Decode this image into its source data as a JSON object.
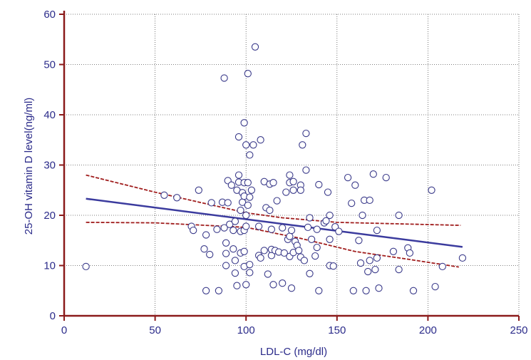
{
  "chart_data": {
    "type": "scatter",
    "title": "",
    "xlabel": "LDL-C (mg/dl)",
    "ylabel": "25-OH vitamin D  level(ng/ml)",
    "xlim": [
      0,
      250
    ],
    "ylim": [
      0,
      60
    ],
    "xticks": [
      "0",
      "50",
      "100",
      "150",
      "200",
      "250"
    ],
    "yticks": [
      "0",
      "10",
      "20",
      "30",
      "40",
      "50",
      "60"
    ],
    "grid": true,
    "legend": "none",
    "colors": {
      "axis": "#8b1a1a",
      "points": "#3a3a8a",
      "regression": "#3b3b9e",
      "confidence": "#a01d1d",
      "grid": "#555555",
      "text": "#2b2b8a"
    },
    "points": [
      [
        12,
        9.8
      ],
      [
        55,
        24
      ],
      [
        62,
        23.5
      ],
      [
        70,
        17.8
      ],
      [
        71,
        17
      ],
      [
        74,
        25
      ],
      [
        77,
        13.3
      ],
      [
        78,
        16.1
      ],
      [
        78,
        5
      ],
      [
        80,
        12.2
      ],
      [
        81,
        22.5
      ],
      [
        84,
        17.2
      ],
      [
        85,
        5
      ],
      [
        87,
        22.6
      ],
      [
        88,
        47.3
      ],
      [
        88,
        17.5
      ],
      [
        89,
        14.5
      ],
      [
        89,
        12.4
      ],
      [
        89,
        10
      ],
      [
        90,
        22.5
      ],
      [
        90,
        26.9
      ],
      [
        91,
        18.2
      ],
      [
        92,
        26
      ],
      [
        93,
        17
      ],
      [
        93,
        13.3
      ],
      [
        94,
        18.8
      ],
      [
        94,
        11
      ],
      [
        94,
        8.5
      ],
      [
        95,
        6
      ],
      [
        95,
        25
      ],
      [
        96,
        26.6
      ],
      [
        96,
        28
      ],
      [
        96,
        35.6
      ],
      [
        97,
        21
      ],
      [
        97,
        16.8
      ],
      [
        97,
        12.5
      ],
      [
        98,
        24.5
      ],
      [
        98,
        22.6
      ],
      [
        99,
        38.4
      ],
      [
        99,
        26.5
      ],
      [
        99,
        23.8
      ],
      [
        99,
        17
      ],
      [
        99,
        12.8
      ],
      [
        99,
        9.8
      ],
      [
        100,
        34
      ],
      [
        100,
        20
      ],
      [
        100,
        17.8
      ],
      [
        100,
        6.2
      ],
      [
        101,
        26.5
      ],
      [
        101,
        22
      ],
      [
        101,
        48.2
      ],
      [
        102,
        32
      ],
      [
        102,
        23.6
      ],
      [
        102,
        10.2
      ],
      [
        102,
        8.6
      ],
      [
        103,
        25
      ],
      [
        104,
        34
      ],
      [
        105,
        53.5
      ],
      [
        107,
        17.8
      ],
      [
        107,
        12
      ],
      [
        108,
        35
      ],
      [
        108,
        11.5
      ],
      [
        110,
        26.7
      ],
      [
        110,
        13
      ],
      [
        111,
        21.5
      ],
      [
        112,
        8.3
      ],
      [
        113,
        26.2
      ],
      [
        113,
        21
      ],
      [
        114,
        17.2
      ],
      [
        114,
        12
      ],
      [
        114,
        13.2
      ],
      [
        115,
        26.5
      ],
      [
        115,
        6.2
      ],
      [
        116,
        13
      ],
      [
        117,
        22.9
      ],
      [
        118,
        12.7
      ],
      [
        120,
        6.5
      ],
      [
        120,
        17.5
      ],
      [
        121,
        12.5
      ],
      [
        122,
        24.6
      ],
      [
        123,
        15.2
      ],
      [
        124,
        28
      ],
      [
        124,
        26.5
      ],
      [
        124,
        15.8
      ],
      [
        124,
        11.8
      ],
      [
        125,
        17
      ],
      [
        125,
        5.5
      ],
      [
        126,
        26.7
      ],
      [
        126,
        25
      ],
      [
        126,
        12.6
      ],
      [
        127,
        14.8
      ],
      [
        128,
        14
      ],
      [
        129,
        13
      ],
      [
        130,
        26
      ],
      [
        130,
        25
      ],
      [
        130,
        11.7
      ],
      [
        131,
        34
      ],
      [
        132,
        11
      ],
      [
        133,
        36.3
      ],
      [
        133,
        29
      ],
      [
        134,
        17.6
      ],
      [
        135,
        19.5
      ],
      [
        135,
        8.4
      ],
      [
        136,
        15.2
      ],
      [
        138,
        11.9
      ],
      [
        139,
        17.2
      ],
      [
        139,
        13.6
      ],
      [
        140,
        26.1
      ],
      [
        140,
        5
      ],
      [
        143,
        18.5
      ],
      [
        144,
        18.9
      ],
      [
        145,
        24.6
      ],
      [
        146,
        20
      ],
      [
        146,
        15.2
      ],
      [
        146,
        10
      ],
      [
        148,
        9.9
      ],
      [
        149,
        17.7
      ],
      [
        151,
        16.8
      ],
      [
        156,
        27.5
      ],
      [
        158,
        22.4
      ],
      [
        159,
        5
      ],
      [
        160,
        26
      ],
      [
        162,
        15
      ],
      [
        163,
        10.5
      ],
      [
        164,
        20
      ],
      [
        165,
        23
      ],
      [
        166,
        5
      ],
      [
        167,
        8.8
      ],
      [
        168,
        23
      ],
      [
        168,
        11
      ],
      [
        170,
        28.2
      ],
      [
        171,
        9.2
      ],
      [
        172,
        11.5
      ],
      [
        172,
        17
      ],
      [
        173,
        5.5
      ],
      [
        177,
        27.5
      ],
      [
        181,
        12.8
      ],
      [
        184,
        20
      ],
      [
        184,
        9.2
      ],
      [
        189,
        13.5
      ],
      [
        190,
        12.5
      ],
      [
        192,
        5
      ],
      [
        202,
        25
      ],
      [
        204,
        5.8
      ],
      [
        208,
        9.8
      ],
      [
        219,
        11.5
      ]
    ],
    "regression": {
      "x": [
        12,
        219
      ],
      "y": [
        23.3,
        13.7
      ]
    },
    "ci_upper": [
      [
        12,
        28
      ],
      [
        50,
        24.6
      ],
      [
        100,
        20.5
      ],
      [
        120,
        19.5
      ],
      [
        150,
        18.6
      ],
      [
        218,
        18
      ]
    ],
    "ci_lower": [
      [
        12,
        18.6
      ],
      [
        50,
        18.5
      ],
      [
        100,
        17.6
      ],
      [
        130,
        15.4
      ],
      [
        160,
        12.8
      ],
      [
        190,
        11.2
      ],
      [
        217,
        9.7
      ]
    ]
  }
}
